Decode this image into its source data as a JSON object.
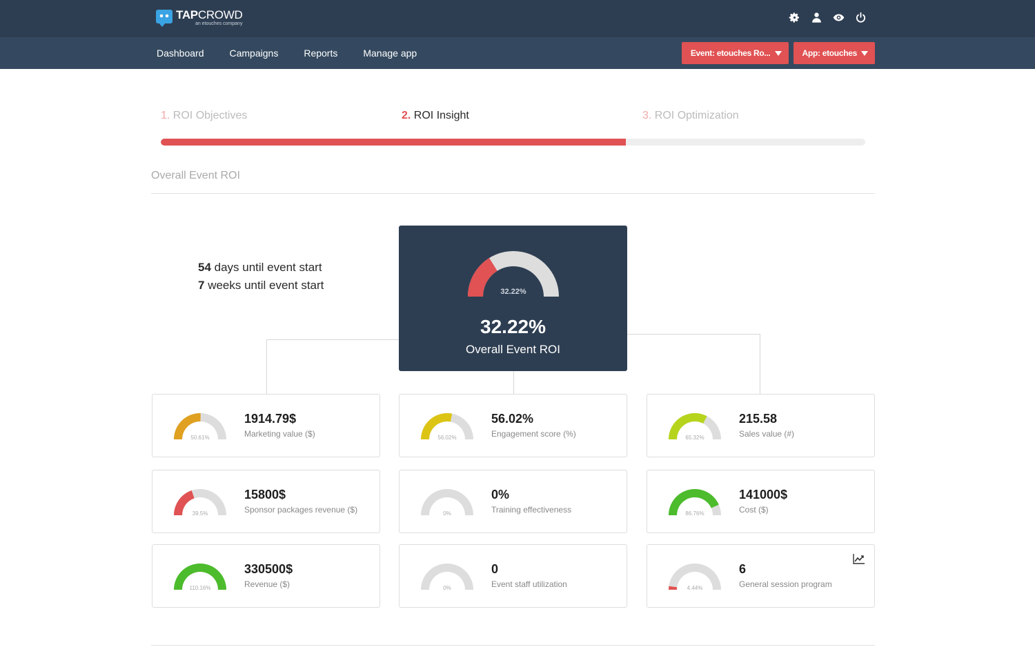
{
  "header": {
    "brand_bold": "TAP",
    "brand_rest": "CROWD",
    "brand_sub": "an etouches company",
    "icons": [
      "gear-icon",
      "user-icon",
      "eye-icon",
      "power-icon"
    ]
  },
  "nav": {
    "items": [
      "Dashboard",
      "Campaigns",
      "Reports",
      "Manage app"
    ],
    "event_button": "Event: etouches Ro...",
    "app_button": "App: etouches"
  },
  "steps": [
    {
      "num": "1.",
      "label": "ROI Objectives"
    },
    {
      "num": "2.",
      "label": "ROI Insight"
    },
    {
      "num": "3.",
      "label": "ROI Optimization"
    }
  ],
  "progress": 0.66,
  "section_title": "Overall Event ROI",
  "countdown": {
    "days_num": "54",
    "days_text": " days until event start",
    "weeks_num": "7",
    "weeks_text": " weeks until event start"
  },
  "overall": {
    "gauge_text": "32.22%",
    "gauge_fraction": 0.3222,
    "value": "32.22%",
    "label": "Overall Event ROI"
  },
  "colors": {
    "accent_red": "#e05253",
    "navy": "#2e3e52",
    "gauge_track": "#dddddd"
  },
  "kpis": [
    {
      "value": "1914.79$",
      "label": "Marketing value ($)",
      "gauge_text": "50.61%",
      "fraction": 0.5061,
      "color": "#e0a020"
    },
    {
      "value": "56.02%",
      "label": "Engagement score (%)",
      "gauge_text": "56.02%",
      "fraction": 0.5602,
      "color": "#dcc414"
    },
    {
      "value": "215.58",
      "label": "Sales value (#)",
      "gauge_text": "65.32%",
      "fraction": 0.6532,
      "color": "#b6d41c"
    },
    {
      "value": "15800$",
      "label": "Sponsor packages revenue ($)",
      "gauge_text": "39.5%",
      "fraction": 0.395,
      "color": "#e05253"
    },
    {
      "value": "0%",
      "label": "Training effectiveness",
      "gauge_text": "0%",
      "fraction": 0,
      "color": "#dddddd"
    },
    {
      "value": "141000$",
      "label": "Cost ($)",
      "gauge_text": "86.76%",
      "fraction": 0.8676,
      "color": "#4cbb2c"
    },
    {
      "value": "330500$",
      "label": "Revenue ($)",
      "gauge_text": "110.16%",
      "fraction": 1.0,
      "color": "#4cbb2c"
    },
    {
      "value": "0",
      "label": "Event staff utilization",
      "gauge_text": "0%",
      "fraction": 0,
      "color": "#dddddd"
    },
    {
      "value": "6",
      "label": "General session program",
      "gauge_text": "4.44%",
      "fraction": 0.0444,
      "color": "#e05253"
    }
  ]
}
